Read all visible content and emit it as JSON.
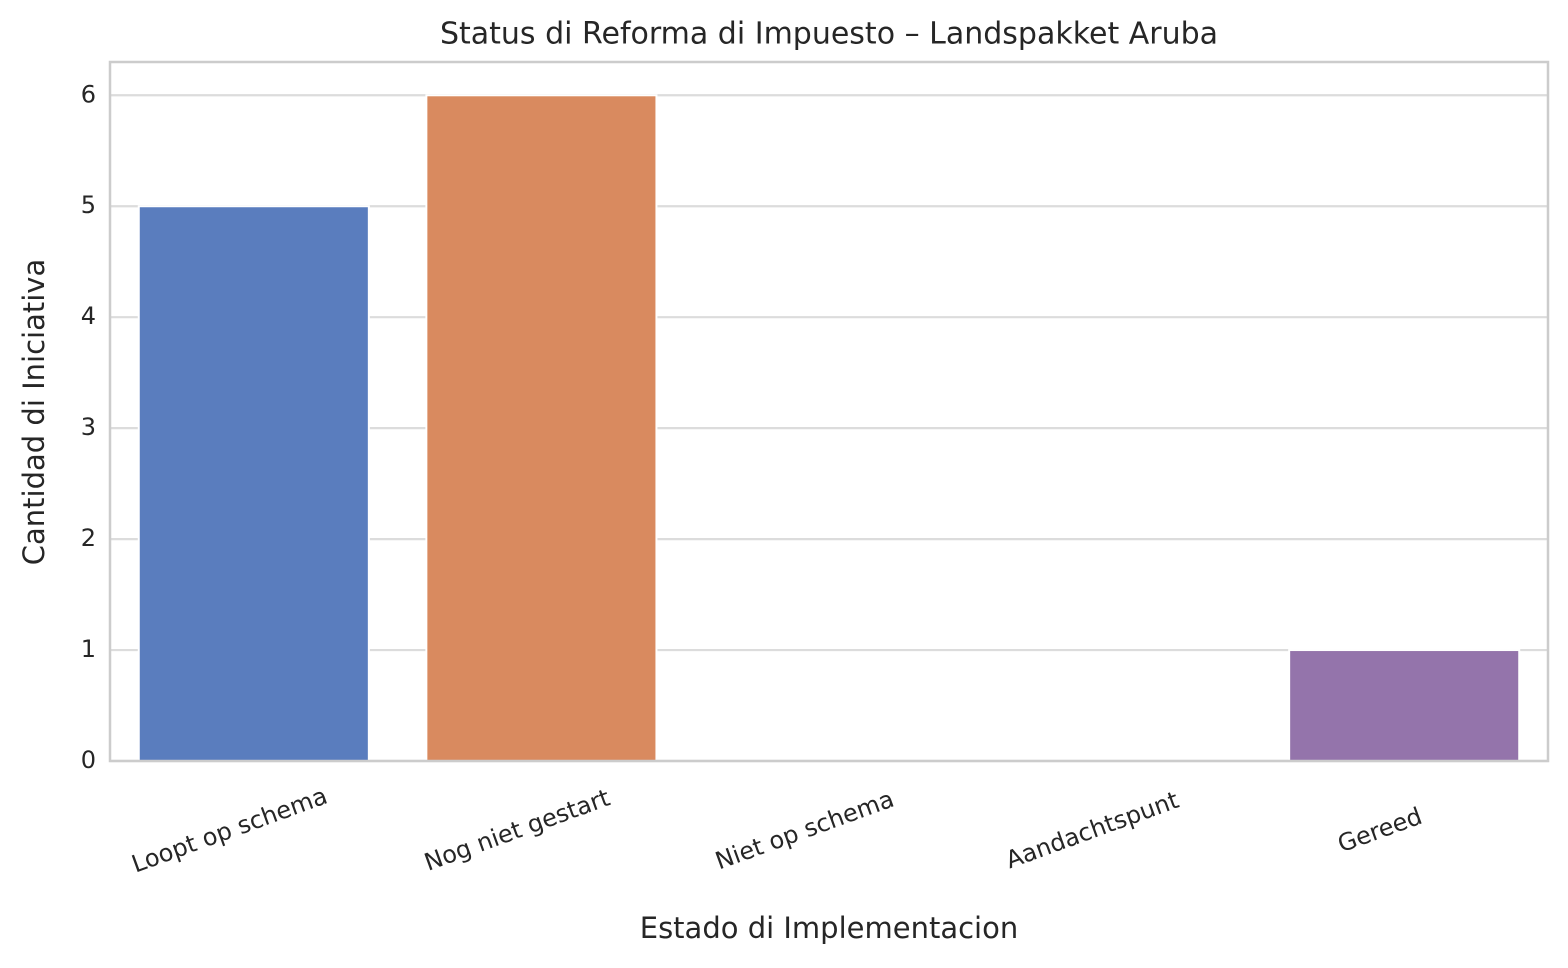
{
  "chart_data": {
    "type": "bar",
    "title": "Status di Reforma di Impuesto – Landspakket Aruba",
    "x_label": "Estado di Implementacion",
    "y_label": "Cantidad di Iniciativa",
    "categories": [
      "Loopt op schema",
      "Nog niet gestart",
      "Niet op schema",
      "Aandachtspunt",
      "Gereed"
    ],
    "values": [
      5,
      6,
      0,
      0,
      1
    ],
    "colors": [
      "#5a7dbe",
      "#d98a5f",
      "#6acc64",
      "#d65f5f",
      "#9474ab"
    ],
    "ylim": [
      0,
      6.3
    ],
    "yticks": [
      0,
      1,
      2,
      3,
      4,
      5,
      6
    ],
    "grid": true
  }
}
